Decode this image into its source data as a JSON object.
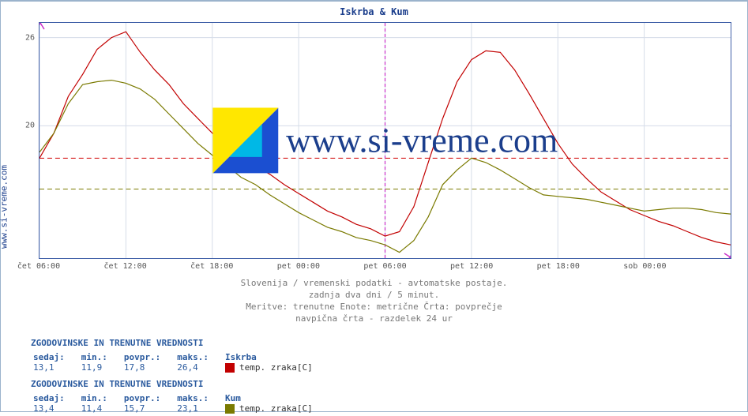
{
  "title": "Iskrba & Kum",
  "watermark": "www.si-vreme.com",
  "ylabel": "www.si-vreme.com",
  "subtitle_lines": [
    "Slovenija / vremenski podatki - avtomatske postaje.",
    "zadnja dva dni / 5 minut.",
    "Meritve: trenutne  Enote: metrične  Črta: povprečje",
    "navpična črta - razdelek 24 ur"
  ],
  "chart": {
    "type": "line",
    "x_range_hours": 48,
    "x_ticks": [
      "čet 06:00",
      "čet 12:00",
      "čet 18:00",
      "pet 00:00",
      "pet 06:00",
      "pet 12:00",
      "pet 18:00",
      "sob 00:00"
    ],
    "x_tick_hours": [
      0,
      6,
      12,
      18,
      24,
      30,
      36,
      42
    ],
    "ylim": [
      11,
      27
    ],
    "y_ticks": [
      20,
      26
    ],
    "grid_color": "#d5dce8",
    "axis_color": "#4060a8",
    "arrow_color": "#c92fc9",
    "marker_line_hour": 24,
    "marker_line_color": "#c92fc9",
    "marker_line_dash": "4,3",
    "background": "#ffffff",
    "avg_line_colorA": "#d10000",
    "avg_line_colorB": "#7a7a00",
    "avg_line_dash": "6,4",
    "series": [
      {
        "name": "Iskrba",
        "label": "temp. zraka[C]",
        "color": "#c20000",
        "stroke_width": 1.2,
        "avg": 17.8,
        "hours": [
          0,
          1,
          2,
          3,
          4,
          5,
          6,
          7,
          8,
          9,
          10,
          11,
          12,
          13,
          14,
          15,
          16,
          17,
          18,
          19,
          20,
          21,
          22,
          23,
          24,
          25,
          26,
          27,
          28,
          29,
          30,
          31,
          32,
          33,
          34,
          35,
          36,
          37,
          38,
          39,
          40,
          41,
          42,
          43,
          44,
          45,
          46,
          47,
          48
        ],
        "values": [
          17.8,
          19.5,
          22.0,
          23.5,
          25.2,
          26.0,
          26.4,
          25.0,
          23.8,
          22.8,
          21.5,
          20.5,
          19.5,
          18.8,
          18.0,
          17.3,
          16.7,
          16.0,
          15.4,
          14.8,
          14.2,
          13.8,
          13.3,
          13.0,
          12.5,
          12.8,
          14.5,
          17.5,
          20.5,
          23.0,
          24.5,
          25.1,
          25.0,
          23.8,
          22.2,
          20.5,
          18.8,
          17.4,
          16.4,
          15.5,
          14.9,
          14.3,
          13.9,
          13.5,
          13.2,
          12.8,
          12.4,
          12.1,
          11.9
        ]
      },
      {
        "name": "Kum",
        "label": "temp. zraka[C]",
        "color": "#7a7a00",
        "stroke_width": 1.2,
        "avg": 15.7,
        "hours": [
          0,
          1,
          2,
          3,
          4,
          5,
          6,
          7,
          8,
          9,
          10,
          11,
          12,
          13,
          14,
          15,
          16,
          17,
          18,
          19,
          20,
          21,
          22,
          23,
          24,
          25,
          26,
          27,
          28,
          29,
          30,
          31,
          32,
          33,
          34,
          35,
          36,
          37,
          38,
          39,
          40,
          41,
          42,
          43,
          44,
          45,
          46,
          47,
          48
        ],
        "values": [
          18.2,
          19.5,
          21.5,
          22.8,
          23.0,
          23.1,
          22.9,
          22.5,
          21.8,
          20.8,
          19.8,
          18.8,
          18.0,
          17.3,
          16.5,
          16.0,
          15.3,
          14.7,
          14.1,
          13.6,
          13.1,
          12.8,
          12.4,
          12.2,
          11.9,
          11.4,
          12.2,
          13.8,
          16.0,
          17.0,
          17.8,
          17.5,
          17.0,
          16.4,
          15.8,
          15.3,
          15.2,
          15.1,
          15.0,
          14.8,
          14.6,
          14.4,
          14.2,
          14.3,
          14.4,
          14.4,
          14.3,
          14.1,
          14.0
        ]
      }
    ]
  },
  "stats": [
    {
      "title": "ZGODOVINSKE IN TRENUTNE VREDNOSTI",
      "cols": {
        "now": "sedaj:",
        "min": "min.:",
        "avg": "povpr.:",
        "max": "maks.:"
      },
      "now": "13,1",
      "min": "11,9",
      "avg": "17,8",
      "max": "26,4",
      "series_name": "Iskrba",
      "series_color": "#c20000",
      "series_label": "temp. zraka[C]"
    },
    {
      "title": "ZGODOVINSKE IN TRENUTNE VREDNOSTI",
      "cols": {
        "now": "sedaj:",
        "min": "min.:",
        "avg": "povpr.:",
        "max": "maks.:"
      },
      "now": "13,4",
      "min": "11,4",
      "avg": "15,7",
      "max": "23,1",
      "series_name": "Kum",
      "series_color": "#7a7a00",
      "series_label": "temp. zraka[C]"
    }
  ]
}
